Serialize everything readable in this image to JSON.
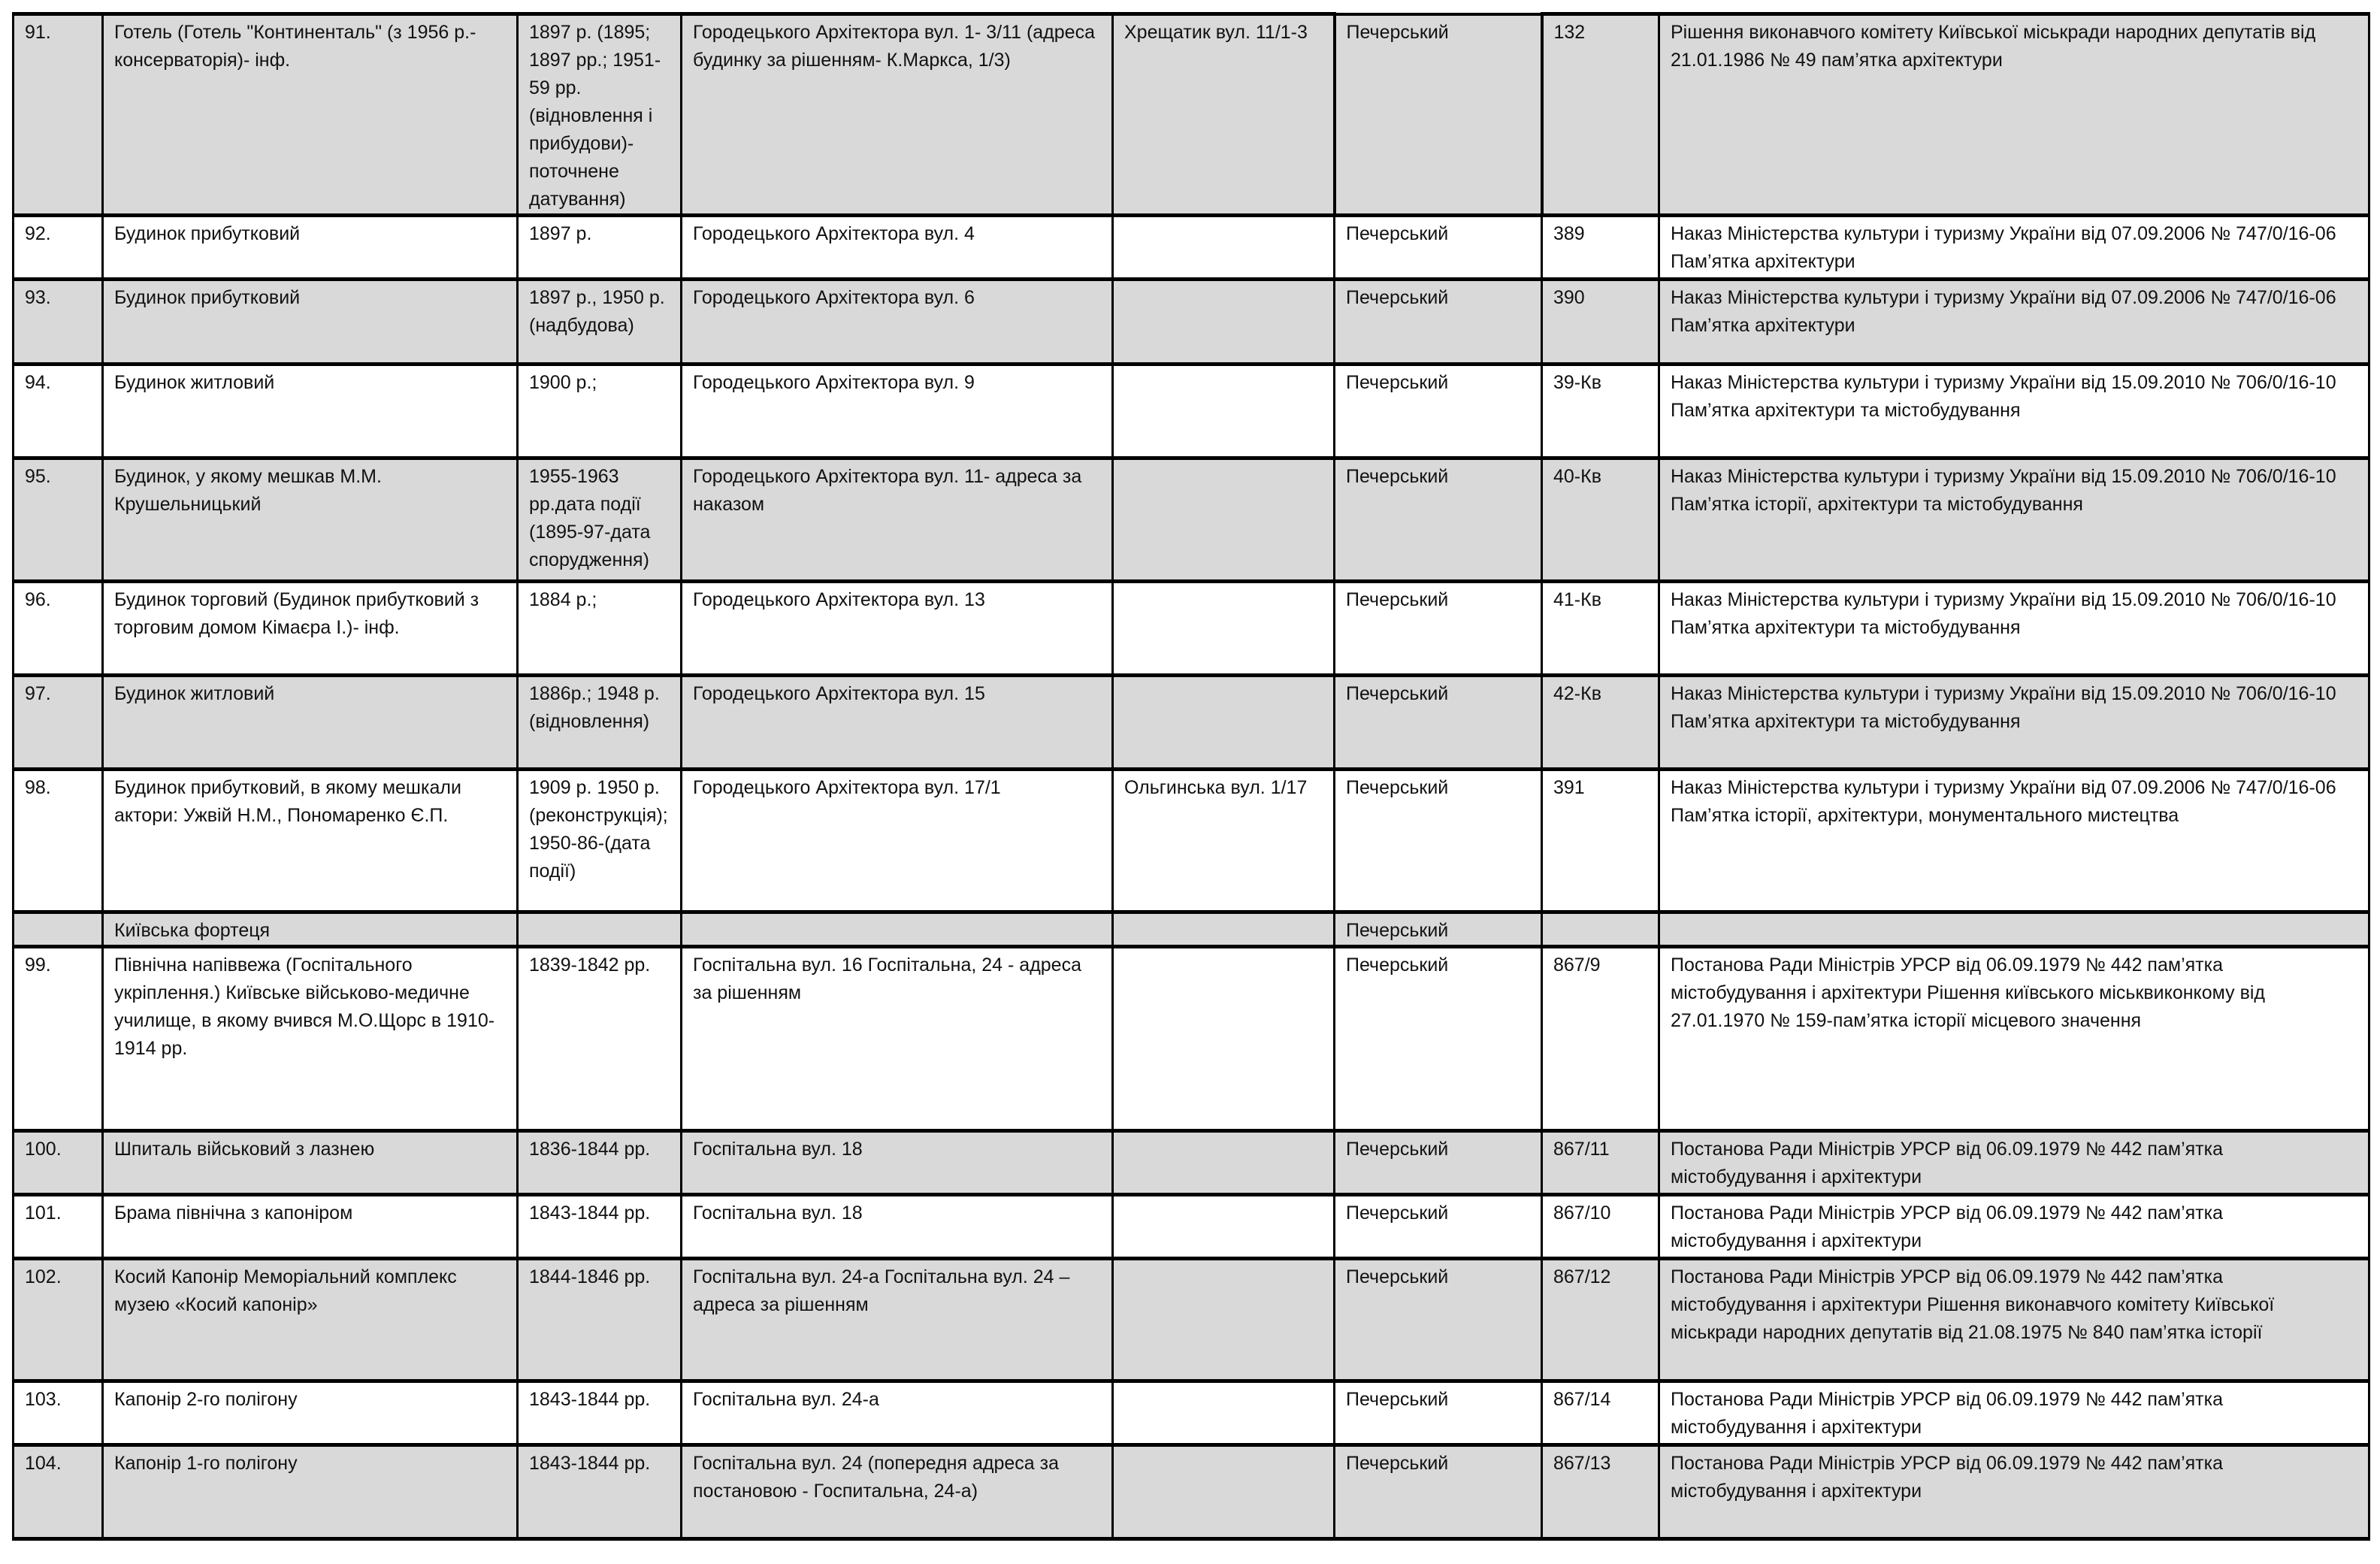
{
  "colors": {
    "shaded_row": "#d9d9d9",
    "plain_row": "#ffffff",
    "border": "#000000"
  },
  "rows": [
    {
      "shaded": true,
      "cells": [
        "91.",
        "Готель (Готель \"Континенталь\" (з 1956 р.- консерваторія)- інф.",
        "1897 р. (1895; 1897 рр.; 1951-59 рр. (відновлення і прибудови)- поточнене датування)",
        "Городецького Архітектора вул. 1- 3/11 (адреса будинку за рішенням- К.Маркса, 1/3)",
        "Хрещатик вул. 11/1-3",
        "Печерський",
        "132",
        "Рішення виконавчого комітету Київської міськради народних депутатів від 21.01.1986 № 49 пам’ятка архітектури"
      ]
    },
    {
      "shaded": false,
      "cells": [
        "92.",
        "Будинок прибутковий",
        "1897 р.",
        "Городецького Архітектора вул. 4",
        "",
        "Печерський",
        "389",
        "Наказ Міністерства культури і туризму України від 07.09.2006 № 747/0/16-06 Пам’ятка архітектури"
      ]
    },
    {
      "shaded": true,
      "cells": [
        "93.",
        "Будинок прибутковий",
        "1897 р., 1950 р. (надбудова)",
        "Городецького Архітектора вул. 6",
        "",
        "Печерський",
        "390",
        "Наказ Міністерства культури і туризму України від 07.09.2006 № 747/0/16-06 Пам’ятка архітектури"
      ]
    },
    {
      "shaded": false,
      "cells": [
        "94.",
        "Будинок житловий",
        "1900 р.;",
        "Городецького Архітектора вул. 9",
        "",
        "Печерський",
        "39-Кв",
        "Наказ Міністерства культури і туризму України від 15.09.2010 № 706/0/16-10 Пам’ятка архітектури та містобудування"
      ]
    },
    {
      "shaded": true,
      "cells": [
        "95.",
        "Будинок, у якому мешкав М.М. Крушельницький",
        "1955-1963 рр.дата події (1895-97-дата спорудження)",
        "Городецького Архітектора вул. 11- адреса за наказом",
        "",
        "Печерський",
        "40-Кв",
        "Наказ Міністерства культури і туризму України від 15.09.2010 № 706/0/16-10 Пам’ятка історії, архітектури та містобудування"
      ]
    },
    {
      "shaded": false,
      "cells": [
        "96.",
        "Будинок торговий (Будинок прибутковий з торговим домом Кімаєра І.)- інф.",
        "1884 р.;",
        "Городецького Архітектора вул. 13",
        "",
        "Печерський",
        "41-Кв",
        "Наказ Міністерства культури і туризму України від 15.09.2010 № 706/0/16-10 Пам’ятка архітектури та містобудування"
      ]
    },
    {
      "shaded": true,
      "cells": [
        "97.",
        "Будинок житловий",
        "1886р.; 1948 р. (відновлення)",
        "Городецького Архітектора вул. 15",
        "",
        "Печерський",
        "42-Кв",
        "Наказ Міністерства культури і туризму України від 15.09.2010 № 706/0/16-10 Пам’ятка архітектури та містобудування"
      ]
    },
    {
      "shaded": false,
      "cells": [
        "98.",
        "Будинок прибутковий, в якому мешкали актори: Ужвій Н.М., Пономаренко Є.П.",
        "1909 р. 1950 р. (реконструкція); 1950-86-(дата події)",
        "Городецького Архітектора вул. 17/1",
        "Ольгинська вул. 1/17",
        "Печерський",
        "391",
        "Наказ Міністерства культури і туризму України від 07.09.2006 № 747/0/16-06 Пам’ятка історії, архітектури, монументального мистецтва"
      ]
    },
    {
      "shaded": true,
      "cells": [
        "",
        "Київська фортеця",
        "",
        "",
        "",
        "Печерський",
        "",
        ""
      ]
    },
    {
      "shaded": false,
      "cells": [
        "99.",
        "Північна напіввежа (Госпітального укріплення.) Київське військово-медичне училище, в якому вчився М.О.Щорс в 1910-1914 рр.",
        "1839-1842 рр.",
        "Госпітальна вул. 16 Госпітальна, 24 - адреса за рішенням",
        "",
        "Печерський",
        "867/9",
        "Постанова Ради Міністрів УРСР від 06.09.1979 № 442  пам’ятка містобудування і архітектури Рішення київського міськвиконкому від 27.01.1970 № 159-пам’ятка історії місцевого значення"
      ]
    },
    {
      "shaded": true,
      "cells": [
        "100.",
        "Шпиталь військовий з лазнею",
        "1836-1844 рр.",
        "Госпітальна вул. 18",
        "",
        "Печерський",
        "867/11",
        "Постанова Ради Міністрів УРСР від 06.09.1979 № 442 пам’ятка містобудування і архітектури"
      ]
    },
    {
      "shaded": false,
      "cells": [
        "101.",
        "Брама північна з капоніром",
        "1843-1844 рр.",
        "Госпітальна вул. 18",
        "",
        "Печерський",
        "867/10",
        "Постанова Ради Міністрів УРСР від 06.09.1979 № 442  пам’ятка містобудування і архітектури"
      ]
    },
    {
      "shaded": true,
      "cells": [
        "102.",
        "Косий Капонір Меморіальний комплекс музею «Косий капонір»",
        "1844-1846 рр.",
        "Госпітальна вул. 24-а Госпітальна вул. 24 – адреса за рішенням",
        "",
        "Печерський",
        "867/12",
        "Постанова Ради Міністрів УРСР від 06.09.1979 № 442 пам’ятка містобудування і архітектури Рішення виконавчого комітету Київської міськради народних депутатів від 21.08.1975 № 840 пам’ятка історії"
      ]
    },
    {
      "shaded": false,
      "cells": [
        "103.",
        "Капонір 2-го полігону",
        "1843-1844 рр.",
        "Госпітальна вул. 24-а",
        "",
        "Печерський",
        "867/14",
        "Постанова Ради Міністрів УРСР від 06.09.1979 № 442 пам’ятка містобудування і архітектури"
      ]
    },
    {
      "shaded": true,
      "cells": [
        "104.",
        "Капонір 1-го полігону",
        "1843-1844 рр.",
        "Госпітальна вул. 24 (попередня адреса за постановою - Госпитальна, 24-а)",
        "",
        "Печерський",
        "867/13",
        "Постанова Ради Міністрів УРСР від 06.09.1979 № 442 пам’ятка містобудування і архітектури"
      ]
    }
  ]
}
